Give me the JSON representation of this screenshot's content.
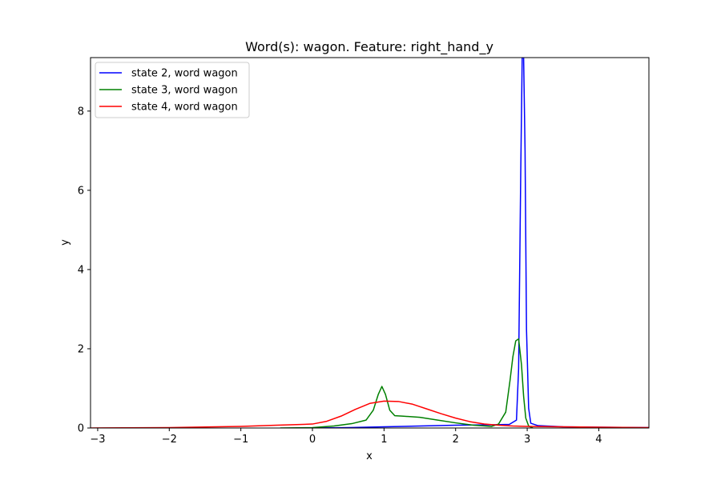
{
  "chart_data": {
    "type": "line",
    "title": "Word(s): wagon. Feature: right_hand_y",
    "xlabel": "x",
    "ylabel": "y",
    "xlim": [
      -3.1,
      4.7
    ],
    "ylim": [
      0,
      9.35
    ],
    "xticks": [
      -3,
      -2,
      -1,
      0,
      1,
      2,
      3,
      4
    ],
    "xtick_labels": [
      "−3",
      "−2",
      "−1",
      "0",
      "1",
      "2",
      "3",
      "4"
    ],
    "yticks": [
      0,
      2,
      4,
      6,
      8
    ],
    "ytick_labels": [
      "0",
      "2",
      "4",
      "6",
      "8"
    ],
    "grid": false,
    "legend_position": "upper-left",
    "series": [
      {
        "name": "state 2, word wagon",
        "color": "#0000ff",
        "x": [
          0.0,
          0.5,
          1.0,
          1.5,
          2.0,
          2.5,
          2.75,
          2.85,
          2.88,
          2.91,
          2.93,
          2.95,
          2.97,
          2.99,
          3.02,
          3.05,
          3.15,
          3.5,
          4.0,
          4.7
        ],
        "y": [
          0.0,
          0.01,
          0.03,
          0.05,
          0.07,
          0.08,
          0.09,
          0.2,
          1.5,
          6.5,
          9.35,
          9.35,
          7.0,
          2.5,
          0.5,
          0.12,
          0.06,
          0.03,
          0.02,
          0.01
        ]
      },
      {
        "name": "state 3, word wagon",
        "color": "#008000",
        "x": [
          -0.45,
          0.0,
          0.3,
          0.55,
          0.75,
          0.85,
          0.92,
          0.97,
          1.02,
          1.08,
          1.15,
          1.25,
          1.5,
          1.75,
          2.0,
          2.25,
          2.5,
          2.6,
          2.7,
          2.76,
          2.8,
          2.84,
          2.88,
          2.92,
          2.95,
          2.98,
          3.02,
          3.08
        ],
        "y": [
          0.0,
          0.01,
          0.05,
          0.11,
          0.2,
          0.45,
          0.85,
          1.05,
          0.85,
          0.45,
          0.31,
          0.3,
          0.27,
          0.2,
          0.13,
          0.07,
          0.04,
          0.1,
          0.4,
          1.2,
          1.8,
          2.2,
          2.25,
          1.6,
          0.8,
          0.25,
          0.05,
          0.0
        ]
      },
      {
        "name": "state 4, word wagon",
        "color": "#ff0000",
        "x": [
          -3.1,
          -2.0,
          -1.0,
          -0.5,
          0.0,
          0.2,
          0.4,
          0.6,
          0.8,
          1.0,
          1.2,
          1.4,
          1.6,
          1.8,
          2.0,
          2.2,
          2.4,
          2.6,
          2.8,
          3.0,
          3.5,
          4.0,
          4.7
        ],
        "y": [
          0.0,
          0.01,
          0.04,
          0.07,
          0.1,
          0.17,
          0.3,
          0.47,
          0.62,
          0.68,
          0.67,
          0.6,
          0.48,
          0.36,
          0.25,
          0.16,
          0.1,
          0.07,
          0.05,
          0.04,
          0.03,
          0.02,
          0.01
        ]
      }
    ]
  }
}
